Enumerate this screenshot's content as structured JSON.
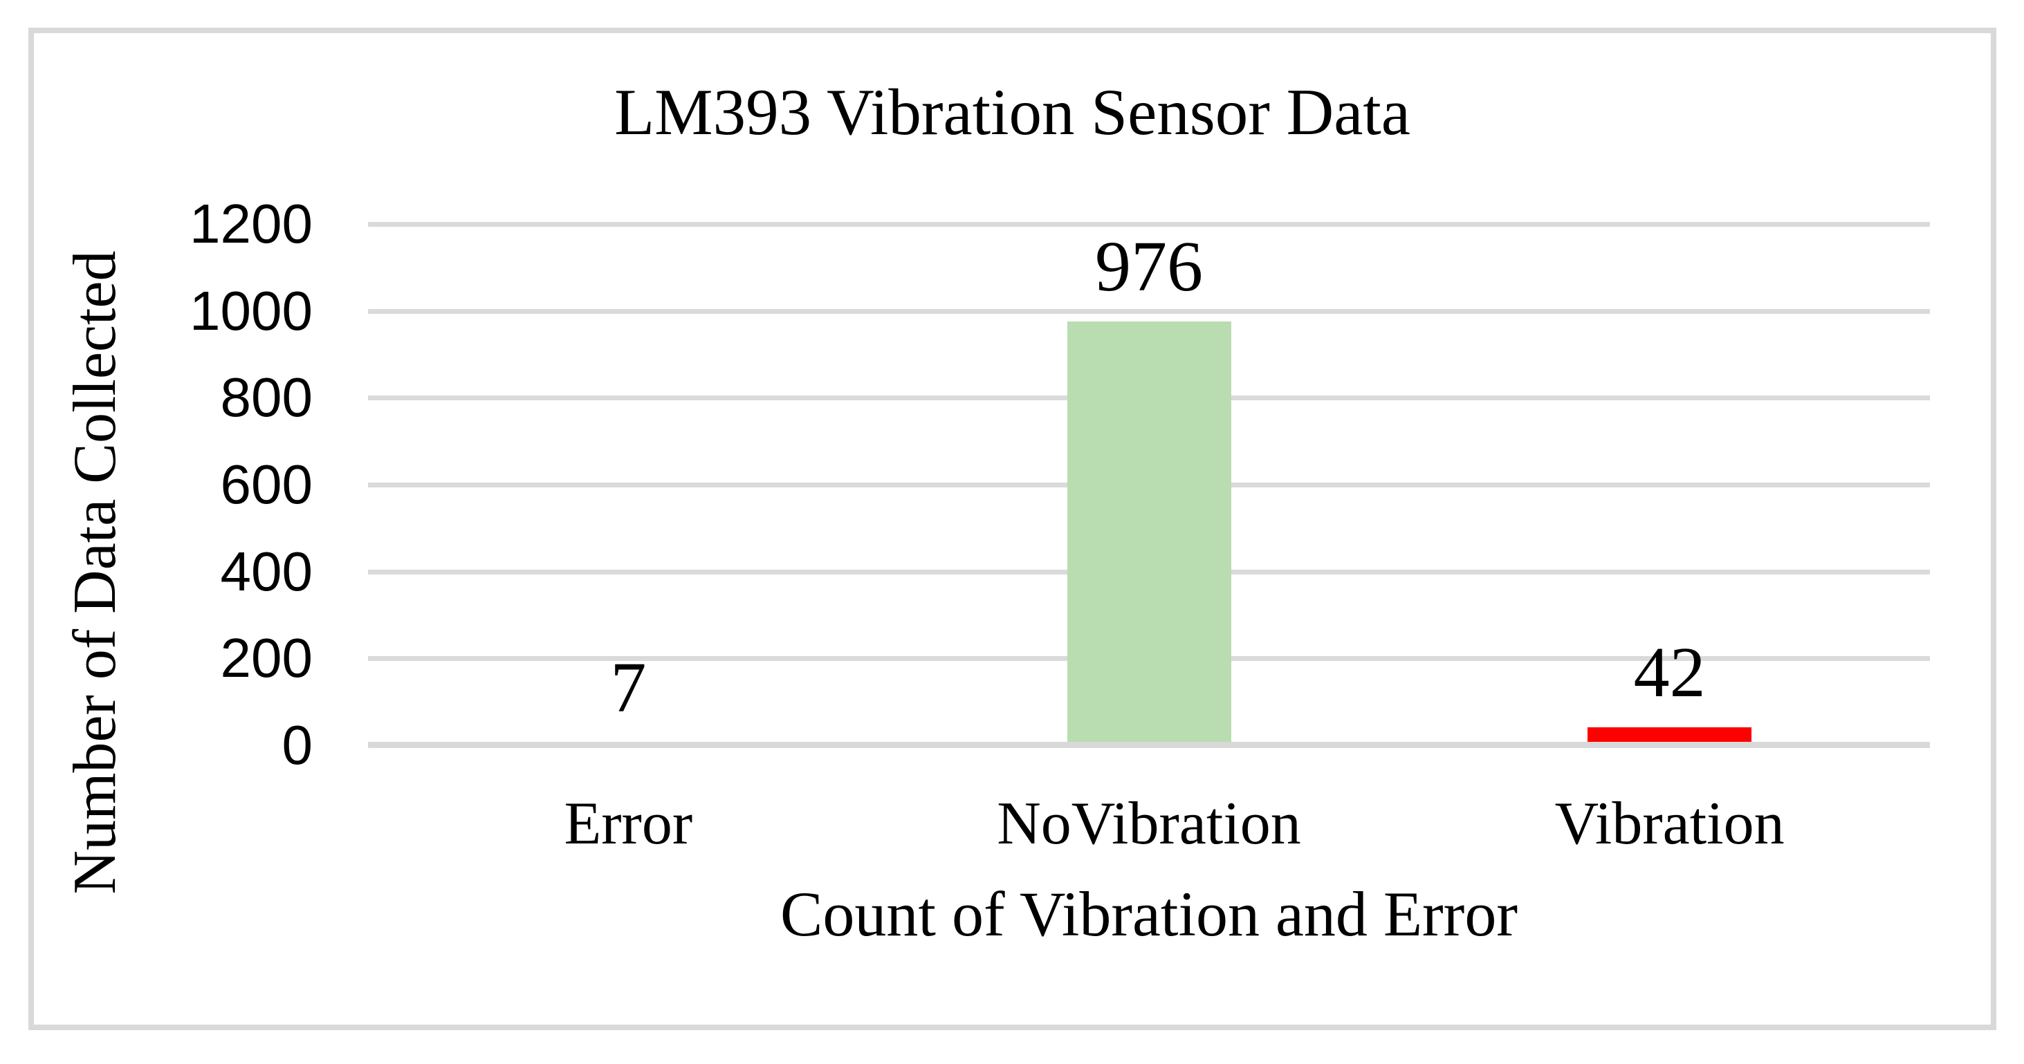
{
  "chart_data": {
    "type": "bar",
    "title": "LM393 Vibration Sensor Data",
    "xlabel": "Count of Vibration and Error",
    "ylabel": "Number of Data Collected",
    "categories": [
      "Error",
      "NoVibration",
      "Vibration"
    ],
    "values": [
      7,
      976,
      42
    ],
    "data_labels": [
      "7",
      "976",
      "42"
    ],
    "bar_colors": [
      "#b9ddb1",
      "#b9ddb1",
      "#ff0000"
    ],
    "ylim": [
      0,
      1200
    ],
    "yticks": [
      1200,
      1000,
      800,
      600,
      400,
      200,
      0
    ],
    "grid": "horizontal-only",
    "legend": "none"
  },
  "colors": {
    "bar_green": "#b9ddb1",
    "bar_red": "#ff0000",
    "gridline": "#dadada",
    "axis_line": "#d9d9d9",
    "frame_border": "#d9d9d9",
    "text": "#000000",
    "background": "#ffffff"
  }
}
